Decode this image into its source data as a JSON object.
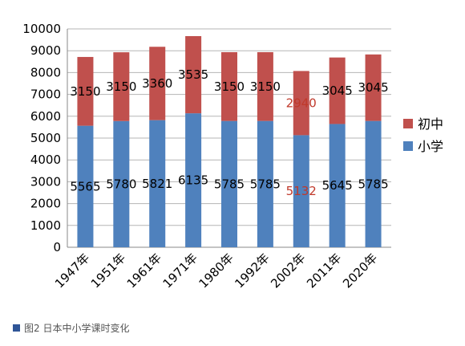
{
  "chart_data": {
    "type": "bar",
    "stacked": true,
    "categories": [
      "1947年",
      "1951年",
      "1961年",
      "1971年",
      "1980年",
      "1992年",
      "2002年",
      "2011年",
      "2020年"
    ],
    "series": [
      {
        "name": "小学",
        "values": [
          5565,
          5780,
          5821,
          6135,
          5785,
          5785,
          5132,
          5645,
          5785
        ],
        "color": "#4f81bd",
        "label_colors": [
          "#000000",
          "#000000",
          "#000000",
          "#000000",
          "#000000",
          "#000000",
          "#c0392b",
          "#000000",
          "#000000"
        ]
      },
      {
        "name": "初中",
        "values": [
          3150,
          3150,
          3360,
          3535,
          3150,
          3150,
          2940,
          3045,
          3045
        ],
        "color": "#c0504d",
        "label_colors": [
          "#000000",
          "#000000",
          "#000000",
          "#000000",
          "#000000",
          "#000000",
          "#c0392b",
          "#000000",
          "#000000"
        ]
      }
    ],
    "ylim": [
      0,
      10000
    ],
    "ytick_step": 1000,
    "grid": true,
    "legend_position": "right",
    "xlabel": "",
    "ylabel": "",
    "title": ""
  },
  "caption": {
    "text": "图2 日本中小学课时变化",
    "marker_color": "#2f5597"
  }
}
